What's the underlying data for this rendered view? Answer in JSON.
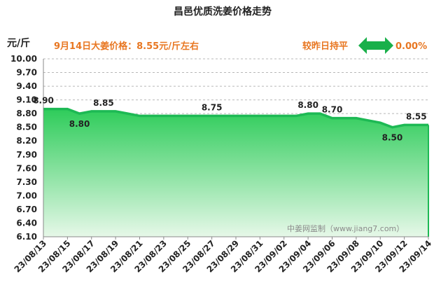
{
  "chart_data": {
    "type": "area",
    "title": "昌邑优质洗姜价格走势",
    "unit_label": "元/斤",
    "headline": "9月14日大姜价格：8.55元/斤左右",
    "change_text": "较昨日持平",
    "change_value": "0.00%",
    "watermark": "中姜网监制（www.jiang7.com）",
    "ylim": [
      6.1,
      10.0
    ],
    "y_ticks": [
      "10.00",
      "9.70",
      "9.40",
      "9.10",
      "8.80",
      "8.50",
      "8.20",
      "7.90",
      "7.60",
      "7.30",
      "7.00",
      "6.70",
      "6.40",
      "6.10"
    ],
    "x_ticks": [
      "23/08/13",
      "23/08/15",
      "23/08/17",
      "23/08/19",
      "23/08/21",
      "23/08/23",
      "23/08/25",
      "23/08/27",
      "23/08/29",
      "23/08/31",
      "23/09/02",
      "23/09/04",
      "23/09/06",
      "23/09/08",
      "23/09/10",
      "23/09/12",
      "23/09/14"
    ],
    "x": [
      "23/08/13",
      "23/08/14",
      "23/08/15",
      "23/08/16",
      "23/08/17",
      "23/08/18",
      "23/08/19",
      "23/08/20",
      "23/08/21",
      "23/08/22",
      "23/08/23",
      "23/08/24",
      "23/08/25",
      "23/08/26",
      "23/08/27",
      "23/08/28",
      "23/08/29",
      "23/08/30",
      "23/08/31",
      "23/09/01",
      "23/09/02",
      "23/09/03",
      "23/09/04",
      "23/09/05",
      "23/09/06",
      "23/09/07",
      "23/09/08",
      "23/09/09",
      "23/09/10",
      "23/09/11",
      "23/09/12",
      "23/09/13",
      "23/09/14"
    ],
    "values": [
      8.9,
      8.9,
      8.9,
      8.8,
      8.85,
      8.85,
      8.85,
      8.8,
      8.75,
      8.75,
      8.75,
      8.75,
      8.75,
      8.75,
      8.75,
      8.75,
      8.75,
      8.75,
      8.75,
      8.75,
      8.75,
      8.75,
      8.8,
      8.8,
      8.7,
      8.7,
      8.7,
      8.65,
      8.6,
      8.5,
      8.55,
      8.55,
      8.55
    ],
    "data_labels": [
      {
        "x": "23/08/13",
        "text": "8.90",
        "pos": "above"
      },
      {
        "x": "23/08/16",
        "text": "8.80",
        "pos": "below"
      },
      {
        "x": "23/08/18",
        "text": "8.85",
        "pos": "above"
      },
      {
        "x": "23/08/27",
        "text": "8.75",
        "pos": "above"
      },
      {
        "x": "23/09/04",
        "text": "8.80",
        "pos": "above"
      },
      {
        "x": "23/09/06",
        "text": "8.70",
        "pos": "above"
      },
      {
        "x": "23/09/11",
        "text": "8.50",
        "pos": "below"
      },
      {
        "x": "23/09/13",
        "text": "8.55",
        "pos": "above"
      }
    ],
    "grid": true,
    "colors": {
      "line": "#1db954",
      "fill_top": "#2ecc5a",
      "fill_bottom": "#e6f8e8",
      "headline": "#e87722",
      "arrow": "#19b04a",
      "grid": "#b8b8b8",
      "watermark": "#8a8a8a"
    }
  }
}
